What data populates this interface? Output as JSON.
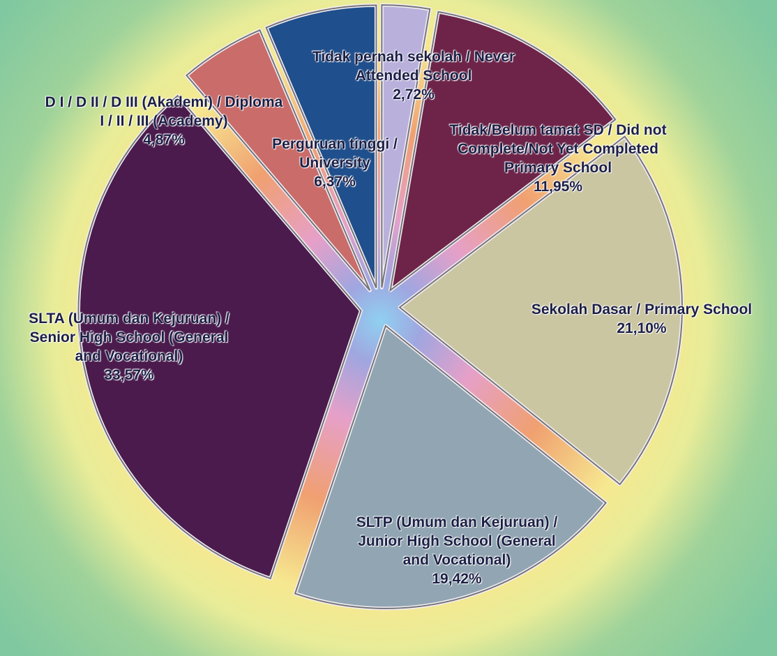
{
  "chart_data": {
    "type": "pie",
    "categories": [
      "Tidak pernah sekolah / Never Attended School",
      "Tidak/Belum tamat SD / Did not Complete/Not Yet Completed Primary School",
      "Sekolah Dasar /  Primary School",
      "SLTP (Umum dan Kejuruan) / Junior High School (General and Vocational)",
      "SLTA (Umum dan Kejuruan) / Senior High School (General and Vocational)",
      "D I / D II / D III (Akademi) / Diploma I / II / III (Academy)",
      "Perguruan tinggi / University"
    ],
    "values": [
      2.72,
      11.95,
      21.1,
      19.42,
      33.57,
      4.87,
      6.37
    ],
    "value_labels": [
      "2,72%",
      "11,95%",
      "21,10%",
      "19,42%",
      "33,57%",
      "4,87%",
      "6,37%"
    ],
    "colors": [
      "#b9b1dc",
      "#6e2448",
      "#cbc6a2",
      "#91a6b2",
      "#4b1b4d",
      "#c96c6a",
      "#1f4f8c"
    ]
  }
}
